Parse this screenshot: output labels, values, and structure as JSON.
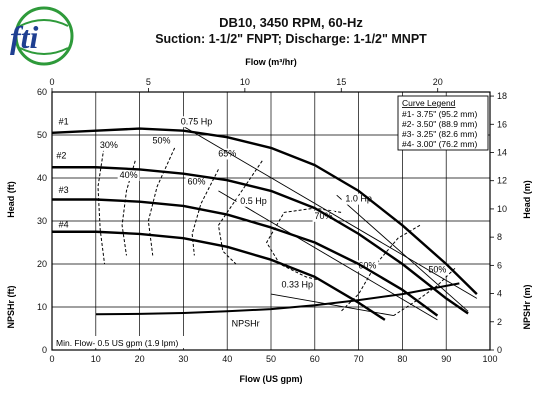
{
  "brand": {
    "logo_text": "fti",
    "logo_green": "#2e9a3a",
    "logo_blue": "#1f3f91"
  },
  "header": {
    "title": "DB10, 3450 RPM, 60-Hz",
    "subtitle": "Suction: 1-1/2\" FNPT; Discharge: 1-1/2\" MNPT"
  },
  "chart_data": {
    "type": "line",
    "title": "DB10, 3450 RPM, 60-Hz",
    "subtitle": "Suction: 1-1/2\" FNPT; Discharge: 1-1/2\" MNPT",
    "xlabel": "Flow (US gpm)",
    "xlabel_top": "Flow (m³/hr)",
    "ylabel_left_top": "Head (ft)",
    "ylabel_left_bottom": "NPSHr (ft)",
    "ylabel_right_top": "Head (m)",
    "ylabel_right_bottom": "NPSHr (m)",
    "xlim": [
      0,
      100
    ],
    "ylim": [
      0,
      60
    ],
    "x_ticks": [
      "0",
      "10",
      "20",
      "30",
      "40",
      "50",
      "60",
      "70",
      "80",
      "90",
      "100"
    ],
    "y_ticks": [
      "0",
      "10",
      "20",
      "30",
      "40",
      "50",
      "60"
    ],
    "x_top_ticks": [
      "0",
      "5",
      "10",
      "15",
      "20"
    ],
    "y_right_ticks": [
      "0",
      "2",
      "4",
      "6",
      "8",
      "10",
      "12",
      "14",
      "16",
      "18"
    ],
    "grid": true,
    "legend": {
      "title": "Curve Legend",
      "position": "top-right",
      "entries": [
        "#1- 3.75\" (95.2 mm)",
        "#2- 3.50\" (88.9 mm)",
        "#3- 3.25\" (82.6 mm)",
        "#4- 3.00\" (76.2 mm)"
      ]
    },
    "series": [
      {
        "name": "#1",
        "x": [
          0,
          10,
          20,
          30,
          40,
          50,
          60,
          70,
          80,
          90,
          97
        ],
        "y": [
          50.5,
          51,
          51.5,
          51,
          49.5,
          47,
          43,
          37,
          29,
          20,
          13
        ]
      },
      {
        "name": "#2",
        "x": [
          0,
          10,
          20,
          30,
          40,
          50,
          60,
          70,
          80,
          90,
          95
        ],
        "y": [
          42.5,
          42.5,
          42,
          41,
          39.5,
          37,
          33,
          27,
          20,
          12,
          8.5
        ]
      },
      {
        "name": "#3",
        "x": [
          0,
          10,
          20,
          30,
          40,
          50,
          60,
          70,
          80,
          88
        ],
        "y": [
          35,
          35,
          34.5,
          33.5,
          31.5,
          28.5,
          25,
          20,
          14,
          8
        ]
      },
      {
        "name": "#4",
        "x": [
          0,
          10,
          20,
          30,
          40,
          50,
          60,
          70,
          76
        ],
        "y": [
          27.5,
          27.5,
          27,
          26,
          24,
          21,
          17,
          11,
          7
        ]
      }
    ],
    "npshr": {
      "label": "NPSHr",
      "x": [
        10,
        20,
        30,
        40,
        50,
        60,
        70,
        80,
        93
      ],
      "y": [
        8.3,
        8.4,
        8.6,
        9,
        9.5,
        10.4,
        11.6,
        13,
        15.5
      ]
    },
    "power_lines": [
      {
        "label": "0.75 Hp",
        "x": [
          30,
          97
        ],
        "y": [
          52,
          12
        ]
      },
      {
        "label": "1.0 Hp",
        "x": [
          65,
          95
        ],
        "y": [
          36,
          9
        ]
      },
      {
        "label": "0.5 Hp",
        "x": [
          38,
          88
        ],
        "y": [
          37,
          7
        ]
      },
      {
        "label": "0.33 Hp",
        "x": [
          50,
          78
        ],
        "y": [
          13,
          8
        ]
      }
    ],
    "efficiency_curves": [
      {
        "label": "30%",
        "x": [
          12,
          10.5,
          11,
          12
        ],
        "y": [
          48,
          38,
          28,
          20
        ]
      },
      {
        "label": "40%",
        "x": [
          19,
          17,
          16,
          17
        ],
        "y": [
          44,
          37,
          29,
          22
        ]
      },
      {
        "label": "50%",
        "x": [
          28,
          24,
          22,
          23
        ],
        "y": [
          47,
          38,
          30,
          22
        ]
      },
      {
        "label": "60%",
        "x": [
          38,
          34,
          32,
          32.5
        ],
        "y": [
          42,
          34,
          27,
          22
        ]
      },
      {
        "label": "65%",
        "x": [
          48,
          42,
          38,
          39,
          42
        ],
        "y": [
          44,
          35,
          29,
          23,
          20
        ]
      },
      {
        "label": "70%",
        "x": [
          66,
          60,
          53,
          49,
          52,
          58,
          62
        ],
        "y": [
          32,
          33,
          32,
          25,
          20,
          17,
          16
        ]
      },
      {
        "label": "60%",
        "x": [
          84,
          79,
          74,
          70,
          66
        ],
        "y": [
          29,
          26,
          20,
          13,
          9
        ]
      },
      {
        "label": "50%",
        "x": [
          92,
          88,
          84,
          78
        ],
        "y": [
          19,
          15,
          12,
          8
        ]
      }
    ],
    "npsh_hp_label": "0.33 Hp",
    "annotation": "Min. Flow- 0.5 US gpm (1.9 lpm)"
  }
}
